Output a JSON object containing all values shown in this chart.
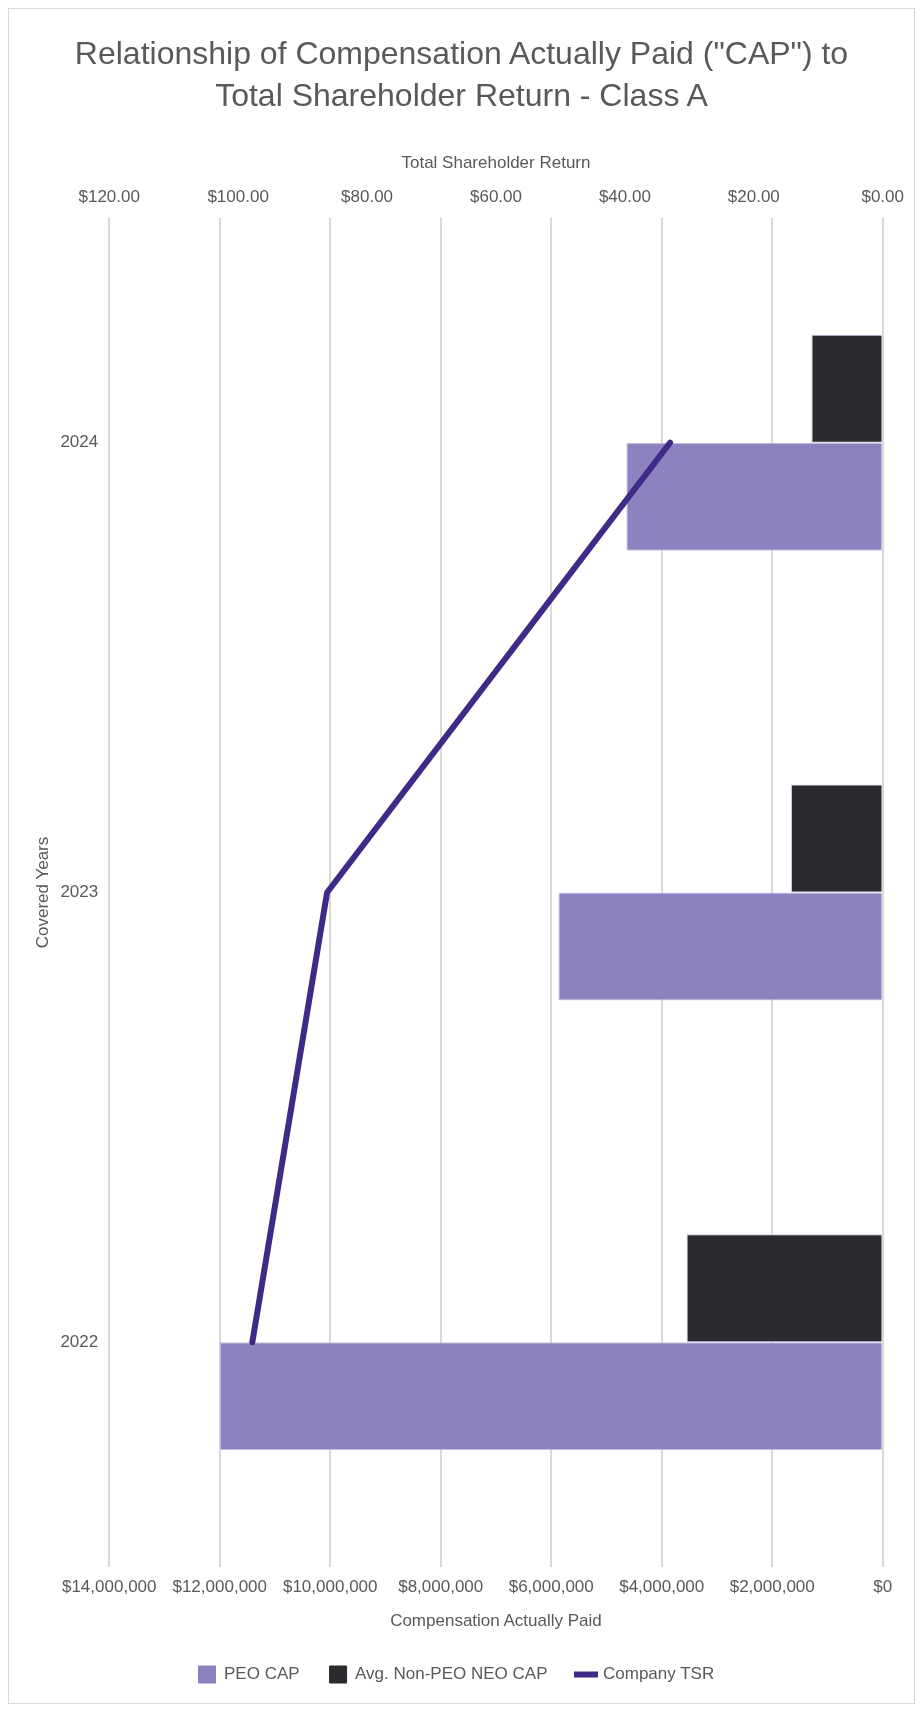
{
  "chart_data": {
    "type": "bar",
    "orientation": "horizontal",
    "title": "Relationship of Compensation Actually Paid (\"CAP\") to Total Shareholder Return - Class A",
    "xlabel": "Compensation Actually Paid",
    "x2label": "Total Shareholder Return",
    "ylabel": "Covered Years",
    "categories": [
      "2024",
      "2023",
      "2022"
    ],
    "series": [
      {
        "name": "PEO CAP",
        "color": "#8b82bf",
        "values": [
          4640000,
          5870000,
          12000000
        ]
      },
      {
        "name": "Avg. Non-PEO NEO CAP",
        "color": "#2b2b2f",
        "values": [
          1290000,
          1660000,
          3550000
        ]
      },
      {
        "name": "Company TSR",
        "type": "line",
        "axis": "x2",
        "color": "#3f2a86",
        "values": [
          33.0,
          86.2,
          97.8
        ]
      }
    ],
    "xlim": [
      14000000,
      0
    ],
    "xticks": [
      {
        "value": 14000000,
        "label": "$14,000,000"
      },
      {
        "value": 12000000,
        "label": "$12,000,000"
      },
      {
        "value": 10000000,
        "label": "$10,000,000"
      },
      {
        "value": 8000000,
        "label": "$8,000,000"
      },
      {
        "value": 6000000,
        "label": "$6,000,000"
      },
      {
        "value": 4000000,
        "label": "$4,000,000"
      },
      {
        "value": 2000000,
        "label": "$2,000,000"
      },
      {
        "value": 0,
        "label": "$0"
      }
    ],
    "x2lim": [
      120,
      0
    ],
    "x2ticks": [
      {
        "value": 120,
        "label": "$120.00"
      },
      {
        "value": 100,
        "label": "$100.00"
      },
      {
        "value": 80,
        "label": "$80.00"
      },
      {
        "value": 60,
        "label": "$60.00"
      },
      {
        "value": 40,
        "label": "$40.00"
      },
      {
        "value": 20,
        "label": "$20.00"
      },
      {
        "value": 0,
        "label": "$0.00"
      }
    ],
    "grid": "x",
    "legend": "bottom"
  }
}
